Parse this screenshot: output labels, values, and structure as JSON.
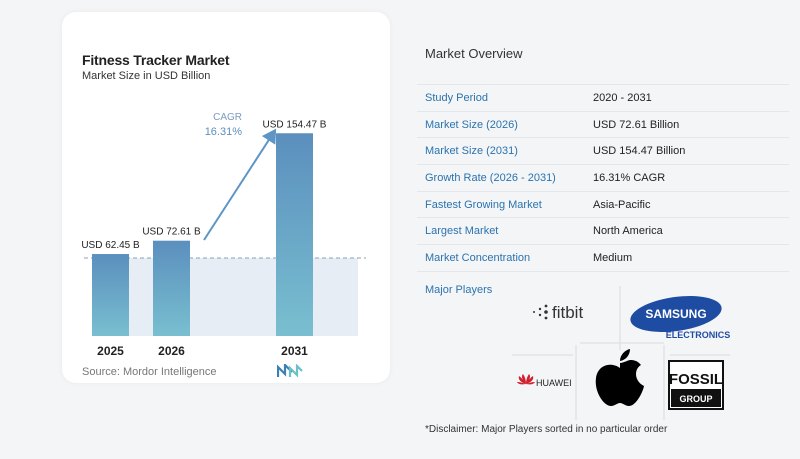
{
  "chart_data": {
    "type": "bar",
    "title": "Fitness Tracker Market",
    "subtitle": "Market Size in USD Billion",
    "categories": [
      "2025",
      "2026",
      "2031"
    ],
    "values": [
      62.45,
      72.61,
      154.47
    ],
    "data_labels": [
      "USD 62.45 B",
      "USD 72.61 B",
      "USD 154.47 B"
    ],
    "ylim": [
      0,
      160
    ],
    "grid": false,
    "annotation": {
      "label": "CAGR",
      "value": "16.31%"
    }
  },
  "source": "Source:  Mordor Intelligence",
  "overview": {
    "title": "Market Overview",
    "rows": [
      {
        "key": "Study Period",
        "value": "2020 - 2031"
      },
      {
        "key": "Market Size (2026)",
        "value": "USD 72.61 Billion"
      },
      {
        "key": "Market Size (2031)",
        "value": "USD 154.47 Billion"
      },
      {
        "key": "Growth Rate (2026 - 2031)",
        "value": "16.31% CAGR"
      },
      {
        "key": "Fastest Growing Market",
        "value": "Asia-Pacific"
      },
      {
        "key": "Largest Market",
        "value": "North America"
      },
      {
        "key": "Market Concentration",
        "value": "Medium"
      }
    ]
  },
  "players": {
    "label": "Major Players",
    "fitbit": "fitbit",
    "samsung_top": "SAMSUNG",
    "samsung_bottom": "ELECTRONICS",
    "huawei": "HUAWEI",
    "fossil_top": "FOSSIL",
    "fossil_bottom": "GROUP"
  },
  "disclaimer": "*Disclaimer: Major Players sorted in no particular order",
  "colors": {
    "bar_top": "#5b8fbe",
    "bar_bottom": "#79bfd0",
    "accent_blue": "#2b73ae",
    "arrow": "#5d95c4"
  }
}
